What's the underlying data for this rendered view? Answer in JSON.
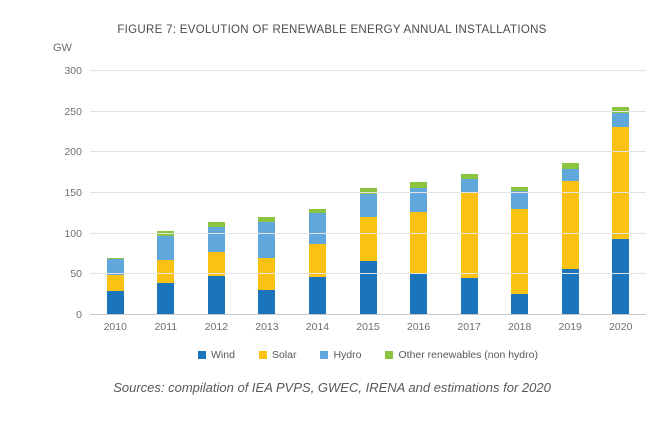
{
  "figure": {
    "title": "FIGURE 7: EVOLUTION OF RENEWABLE ENERGY ANNUAL INSTALLATIONS",
    "unit_label": "GW",
    "source_note": "Sources: compilation of IEA PVPS, GWEC, IRENA and estimations for 2020"
  },
  "chart_data": {
    "type": "bar",
    "stacked": true,
    "title": "FIGURE 7: EVOLUTION OF RENEWABLE ENERGY ANNUAL INSTALLATIONS",
    "xlabel": "",
    "ylabel": "GW",
    "ylim": [
      0,
      300
    ],
    "yticks": [
      0,
      50,
      100,
      150,
      200,
      250,
      300
    ],
    "grid": true,
    "legend_position": "bottom",
    "categories": [
      "2010",
      "2011",
      "2012",
      "2013",
      "2014",
      "2015",
      "2016",
      "2017",
      "2018",
      "2019",
      "2020"
    ],
    "series": [
      {
        "name": "Wind",
        "color": "#1b75bc",
        "values": [
          30,
          39,
          48,
          31,
          47,
          66,
          50,
          45,
          26,
          57,
          93
        ]
      },
      {
        "name": "Solar",
        "color": "#fcc213",
        "values": [
          19,
          29,
          30,
          39,
          41,
          54,
          77,
          105,
          104,
          108,
          138
        ]
      },
      {
        "name": "Hydro",
        "color": "#60a8dc",
        "values": [
          20,
          29,
          30,
          45,
          37,
          29,
          29,
          17,
          22,
          14,
          18
        ]
      },
      {
        "name": "Other renewables (non hydro)",
        "color": "#8bc53f",
        "values": [
          1,
          6,
          6,
          6,
          5,
          7,
          7,
          6,
          6,
          8,
          7
        ]
      }
    ],
    "totals": [
      70,
      103,
      114,
      121,
      130,
      156,
      163,
      173,
      158,
      187,
      256
    ],
    "colors": {
      "gridline": "#e3e3e3",
      "baseline": "#c8c8c8",
      "axis_text": "#6e6e6e",
      "title_text": "#4a4a4a"
    }
  }
}
